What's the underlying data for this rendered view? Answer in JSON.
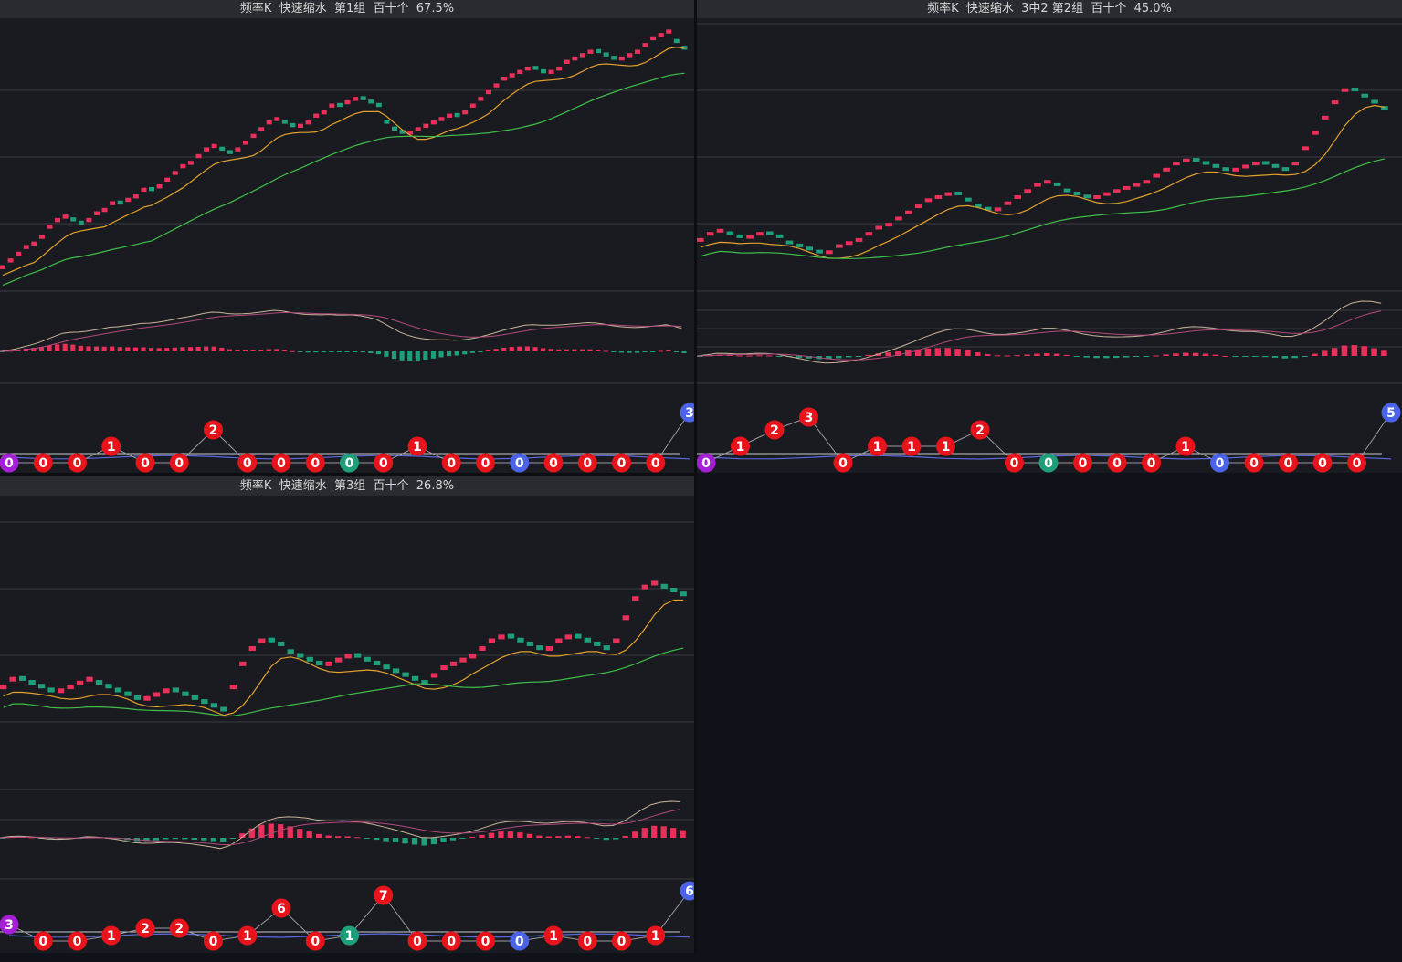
{
  "colors": {
    "up": "#e8305a",
    "down": "#1f9e7a",
    "ma_fast": "#e3a12c",
    "ma_slow": "#3fbf4a",
    "grid": "#3a3b40",
    "macd_dif": "#c9b59a",
    "macd_dea": "#b04a7a",
    "node_red": "#e8141c",
    "node_green": "#1f9e7a",
    "node_blue": "#4a63e8",
    "node_purple": "#a41fd6",
    "level_line": "#c8c8d0",
    "level_blue": "#5a6ae0"
  },
  "panels": [
    {
      "title": "频率K  快速缩水  第1组  百十个  67.5%",
      "chart_data": {
        "type": "candlestick",
        "trend": [
          38,
          40,
          42,
          44,
          45,
          47,
          50,
          52,
          53,
          51,
          50,
          52,
          54,
          55,
          57,
          56,
          58,
          59,
          61,
          60,
          62,
          64,
          66,
          68,
          69,
          71,
          73,
          74,
          72,
          71,
          73,
          75,
          77,
          79,
          81,
          82,
          80,
          79,
          80,
          81,
          83,
          84,
          86,
          85,
          87,
          88,
          87,
          86,
          85,
          80,
          78,
          77,
          78,
          79,
          80,
          81,
          82,
          83,
          82,
          84,
          86,
          88,
          90,
          92,
          94,
          95,
          96,
          97,
          96,
          95,
          96,
          97,
          99,
          100,
          101,
          102,
          101,
          100,
          99,
          100,
          101,
          102,
          104,
          106,
          107,
          108,
          104,
          102
        ],
        "ma_fast_start": 30,
        "ma_slow_start": 22,
        "nodes": [
          {
            "label": "0",
            "color": "purple",
            "level": "low"
          },
          {
            "label": "0",
            "color": "red",
            "level": "low"
          },
          {
            "label": "0",
            "color": "red",
            "level": "low"
          },
          {
            "label": "1",
            "color": "red",
            "level": "mid"
          },
          {
            "label": "0",
            "color": "red",
            "level": "low"
          },
          {
            "label": "0",
            "color": "red",
            "level": "low"
          },
          {
            "label": "2",
            "color": "red",
            "level": "high"
          },
          {
            "label": "0",
            "color": "red",
            "level": "low"
          },
          {
            "label": "0",
            "color": "red",
            "level": "low"
          },
          {
            "label": "0",
            "color": "red",
            "level": "low"
          },
          {
            "label": "0",
            "color": "green",
            "level": "low"
          },
          {
            "label": "0",
            "color": "red",
            "level": "low"
          },
          {
            "label": "1",
            "color": "red",
            "level": "mid"
          },
          {
            "label": "0",
            "color": "red",
            "level": "low"
          },
          {
            "label": "0",
            "color": "red",
            "level": "low"
          },
          {
            "label": "0",
            "color": "blue",
            "level": "low"
          },
          {
            "label": "0",
            "color": "red",
            "level": "low"
          },
          {
            "label": "0",
            "color": "red",
            "level": "low"
          },
          {
            "label": "0",
            "color": "red",
            "level": "low"
          },
          {
            "label": "0",
            "color": "red",
            "level": "low"
          },
          {
            "label": "3",
            "color": "blue",
            "level": "top"
          }
        ]
      }
    },
    {
      "title": "频率K  快速缩水  3中2 第2组  百十个  45.0%",
      "chart_data": {
        "type": "candlestick",
        "trend": [
          20,
          22,
          23,
          21,
          20,
          21,
          22,
          21,
          20,
          18,
          17,
          16,
          15,
          16,
          18,
          19,
          20,
          22,
          24,
          25,
          27,
          29,
          31,
          33,
          34,
          35,
          34,
          32,
          30,
          29,
          30,
          32,
          34,
          36,
          38,
          39,
          37,
          35,
          34,
          33,
          34,
          35,
          36,
          37,
          38,
          39,
          41,
          43,
          45,
          46,
          45,
          44,
          43,
          42,
          43,
          44,
          45,
          44,
          43,
          42,
          45,
          50,
          55,
          60,
          65,
          69,
          68,
          66,
          64,
          62
        ],
        "ma_fast_start": 20,
        "ma_slow_start": 20,
        "nodes": [
          {
            "label": "0",
            "color": "purple",
            "level": "low"
          },
          {
            "label": "1",
            "color": "red",
            "level": "mid"
          },
          {
            "label": "2",
            "color": "red",
            "level": "high"
          },
          {
            "label": "3",
            "color": "red",
            "level": "higher"
          },
          {
            "label": "0",
            "color": "red",
            "level": "low"
          },
          {
            "label": "1",
            "color": "red",
            "level": "mid"
          },
          {
            "label": "1",
            "color": "red",
            "level": "mid"
          },
          {
            "label": "1",
            "color": "red",
            "level": "mid"
          },
          {
            "label": "2",
            "color": "red",
            "level": "high"
          },
          {
            "label": "0",
            "color": "red",
            "level": "low"
          },
          {
            "label": "0",
            "color": "green",
            "level": "low"
          },
          {
            "label": "0",
            "color": "red",
            "level": "low"
          },
          {
            "label": "0",
            "color": "red",
            "level": "low"
          },
          {
            "label": "0",
            "color": "red",
            "level": "low"
          },
          {
            "label": "1",
            "color": "red",
            "level": "mid"
          },
          {
            "label": "0",
            "color": "blue",
            "level": "low"
          },
          {
            "label": "0",
            "color": "red",
            "level": "low"
          },
          {
            "label": "0",
            "color": "red",
            "level": "low"
          },
          {
            "label": "0",
            "color": "red",
            "level": "low"
          },
          {
            "label": "0",
            "color": "red",
            "level": "low"
          },
          {
            "label": "5",
            "color": "blue",
            "level": "top"
          }
        ]
      }
    },
    {
      "title": "频率K  快速缩水  第3组  百十个  26.8%",
      "chart_data": {
        "type": "candlestick",
        "trend": [
          30,
          32,
          31,
          30,
          29,
          28,
          29,
          30,
          31,
          32,
          30,
          29,
          28,
          27,
          26,
          27,
          28,
          29,
          28,
          27,
          26,
          25,
          24,
          23,
          30,
          36,
          40,
          42,
          41,
          40,
          38,
          37,
          36,
          35,
          36,
          37,
          38,
          37,
          36,
          35,
          34,
          33,
          32,
          31,
          30,
          33,
          35,
          36,
          37,
          38,
          40,
          42,
          43,
          42,
          41,
          40,
          39,
          40,
          42,
          43,
          42,
          41,
          40,
          39,
          42,
          48,
          53,
          56,
          57,
          55,
          54,
          53
        ],
        "ma_fast_start": 25,
        "ma_slow_start": 22,
        "nodes": [
          {
            "label": "3",
            "color": "purple",
            "level": "mid"
          },
          {
            "label": "0",
            "color": "red",
            "level": "low"
          },
          {
            "label": "0",
            "color": "red",
            "level": "low"
          },
          {
            "label": "1",
            "color": "red",
            "level": "lowmid"
          },
          {
            "label": "2",
            "color": "red",
            "level": "midhigh"
          },
          {
            "label": "2",
            "color": "red",
            "level": "midhigh"
          },
          {
            "label": "0",
            "color": "red",
            "level": "low"
          },
          {
            "label": "1",
            "color": "red",
            "level": "lowmid"
          },
          {
            "label": "6",
            "color": "red",
            "level": "high"
          },
          {
            "label": "0",
            "color": "red",
            "level": "low"
          },
          {
            "label": "1",
            "color": "green",
            "level": "lowmid"
          },
          {
            "label": "7",
            "color": "red",
            "level": "higher"
          },
          {
            "label": "0",
            "color": "red",
            "level": "low"
          },
          {
            "label": "0",
            "color": "red",
            "level": "low"
          },
          {
            "label": "0",
            "color": "red",
            "level": "low"
          },
          {
            "label": "0",
            "color": "blue",
            "level": "low"
          },
          {
            "label": "1",
            "color": "red",
            "level": "lowmid"
          },
          {
            "label": "0",
            "color": "red",
            "level": "low"
          },
          {
            "label": "0",
            "color": "red",
            "level": "low"
          },
          {
            "label": "1",
            "color": "red",
            "level": "lowmid"
          },
          {
            "label": "6",
            "color": "blue",
            "level": "top"
          }
        ]
      }
    }
  ]
}
